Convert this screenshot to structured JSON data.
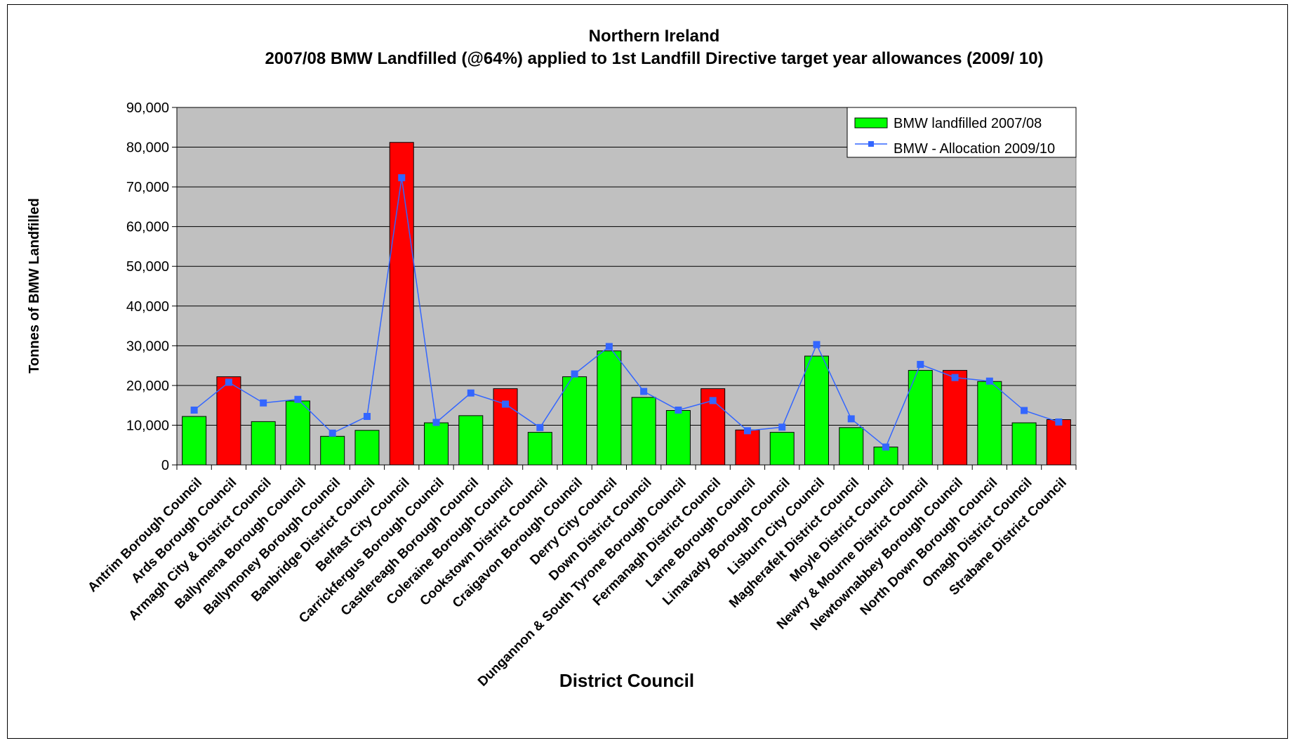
{
  "chart_data": {
    "type": "bar",
    "title": "Northern Ireland",
    "subtitle": "2007/08  BMW Landfilled (@64%) applied to 1st Landfill Directive target year allowances (2009/ 10)",
    "xlabel": "District Council",
    "ylabel": "Tonnes of BMW Landfilled",
    "ylim": [
      0,
      90000
    ],
    "yticks": [
      "0",
      "10,000",
      "20,000",
      "30,000",
      "40,000",
      "50,000",
      "60,000",
      "70,000",
      "80,000",
      "90,000"
    ],
    "grid": true,
    "legend_position": "top-right",
    "categories": [
      "Antrim Borough Council",
      "Ards Borough Council",
      "Armagh City & District Council",
      "Ballymena Borough Council",
      "Ballymoney Borough Council",
      "Banbridge District Council",
      "Belfast City Council",
      "Carrickfergus Borough Council",
      "Castlereagh Borough Council",
      "Coleraine Borough Council",
      "Cookstown District Council",
      "Craigavon Borough Council",
      "Derry City Council",
      "Down District Council",
      "Dungannon & South Tyrone Borough Council",
      "Fermanagh District Council",
      "Larne Borough Council",
      "Limavady Borough Council",
      "Lisburn City Council",
      "Magherafelt District Council",
      "Moyle District Council",
      "Newry & Mourne District Council",
      "Newtownabbey Borough Council",
      "North Down Borough Council",
      "Omagh District Council",
      "Strabane District Council"
    ],
    "series": [
      {
        "name": "BMW landfilled 2007/08",
        "kind": "bar",
        "color": "#00ff00",
        "values": [
          12200,
          22200,
          10900,
          16100,
          7200,
          8700,
          81200,
          10600,
          12400,
          19200,
          8200,
          22200,
          28700,
          17000,
          13700,
          19200,
          8800,
          8200,
          27400,
          9400,
          4500,
          23800,
          23800,
          21000,
          10600,
          11400
        ]
      },
      {
        "name": "BMW - Allocation 2009/10",
        "kind": "line",
        "color": "#3366ff",
        "values": [
          13800,
          20800,
          15600,
          16500,
          8000,
          12200,
          72300,
          10700,
          18100,
          15300,
          9400,
          22900,
          29800,
          18500,
          13800,
          16200,
          8600,
          9500,
          30300,
          11600,
          4500,
          25300,
          22000,
          21100,
          13700,
          10800
        ]
      }
    ],
    "over_allocation_color": "#ff0000",
    "frame_color": "#000000",
    "plot_bg": "#c0c0c0"
  }
}
